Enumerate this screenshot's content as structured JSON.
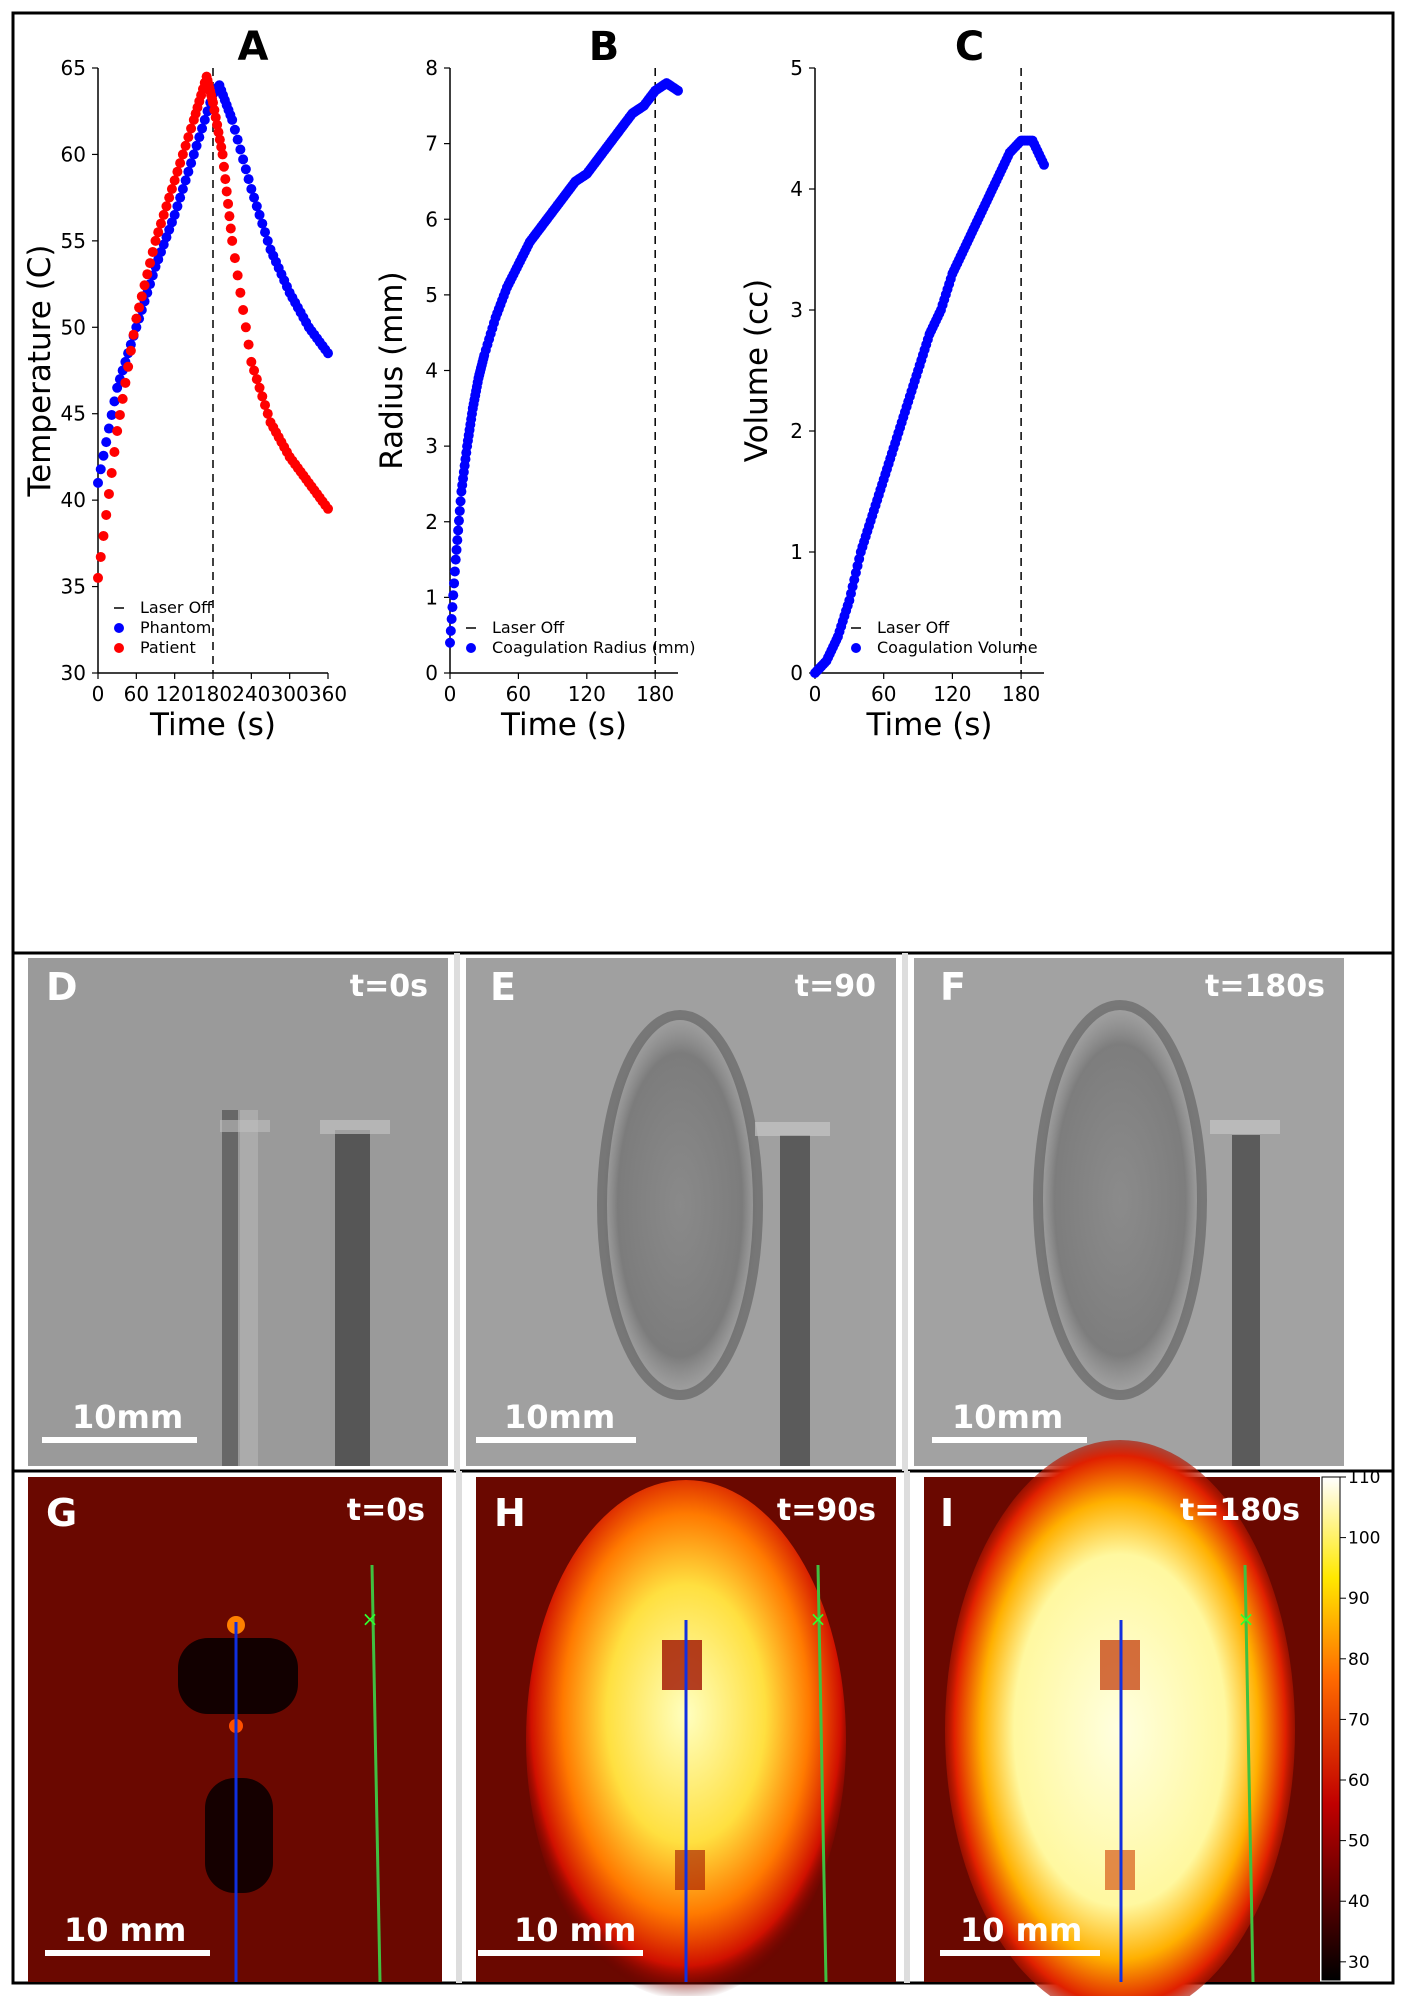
{
  "chart_data": [
    {
      "id": "A",
      "type": "scatter",
      "panel_label": "A",
      "xlabel": "Time (s)",
      "ylabel": "Temperature (C)",
      "xlim": [
        0,
        360
      ],
      "ylim": [
        30,
        65
      ],
      "xticks": [
        0,
        60,
        120,
        180,
        240,
        300,
        360
      ],
      "yticks": [
        30,
        35,
        40,
        45,
        50,
        55,
        60,
        65
      ],
      "vline_x": 180,
      "legend": [
        "Laser Off",
        "Phantom",
        "Patient"
      ],
      "series": [
        {
          "name": "Phantom",
          "color": "#0000ff",
          "x": [
            0,
            30,
            60,
            90,
            120,
            150,
            180,
            190,
            210,
            240,
            270,
            300,
            330,
            360
          ],
          "y": [
            41,
            46.5,
            50,
            53.5,
            56.5,
            60,
            63.5,
            64,
            62,
            58,
            54.5,
            52,
            50,
            48.5
          ]
        },
        {
          "name": "Patient",
          "color": "#ff0000",
          "x": [
            0,
            30,
            60,
            90,
            120,
            150,
            170,
            180,
            195,
            210,
            240,
            270,
            300,
            330,
            360
          ],
          "y": [
            35.5,
            44,
            50.5,
            55,
            58.5,
            62,
            64.5,
            63,
            60,
            55,
            48,
            44.5,
            42.5,
            41,
            39.5
          ]
        }
      ]
    },
    {
      "id": "B",
      "type": "scatter",
      "panel_label": "B",
      "xlabel": "Time (s)",
      "ylabel": "Radius (mm)",
      "xlim": [
        0,
        200
      ],
      "ylim": [
        0,
        8
      ],
      "xticks": [
        0,
        60,
        120,
        180
      ],
      "yticks": [
        0,
        1,
        2,
        3,
        4,
        5,
        6,
        7,
        8
      ],
      "vline_x": 180,
      "legend": [
        "Laser Off",
        "Coagulation Radius (mm)"
      ],
      "series": [
        {
          "name": "Coagulation Radius (mm)",
          "color": "#0000ff",
          "x": [
            0,
            5,
            10,
            15,
            20,
            25,
            30,
            40,
            50,
            60,
            70,
            80,
            90,
            100,
            110,
            120,
            130,
            140,
            150,
            160,
            170,
            180,
            190,
            200
          ],
          "y": [
            0.4,
            1.5,
            2.4,
            3.0,
            3.5,
            3.9,
            4.2,
            4.7,
            5.1,
            5.4,
            5.7,
            5.9,
            6.1,
            6.3,
            6.5,
            6.6,
            6.8,
            7.0,
            7.2,
            7.4,
            7.5,
            7.7,
            7.8,
            7.7
          ]
        }
      ]
    },
    {
      "id": "C",
      "type": "scatter",
      "panel_label": "C",
      "xlabel": "Time (s)",
      "ylabel": "Volume (cc)",
      "xlim": [
        0,
        200
      ],
      "ylim": [
        0,
        5
      ],
      "xticks": [
        0,
        60,
        120,
        180
      ],
      "yticks": [
        0,
        1,
        2,
        3,
        4,
        5
      ],
      "vline_x": 180,
      "legend": [
        "Laser Off",
        "Coagulation Volume"
      ],
      "series": [
        {
          "name": "Coagulation Volume",
          "color": "#0000ff",
          "x": [
            0,
            10,
            20,
            30,
            40,
            50,
            60,
            70,
            80,
            90,
            100,
            110,
            120,
            130,
            140,
            150,
            160,
            170,
            180,
            190,
            200
          ],
          "y": [
            0,
            0.1,
            0.3,
            0.6,
            1.0,
            1.3,
            1.6,
            1.9,
            2.2,
            2.5,
            2.8,
            3.0,
            3.3,
            3.5,
            3.7,
            3.9,
            4.1,
            4.3,
            4.4,
            4.4,
            4.2
          ]
        }
      ]
    }
  ],
  "mri_panels": [
    {
      "label": "D",
      "time": "t=0s",
      "scale": "10mm"
    },
    {
      "label": "E",
      "time": "t=90",
      "scale": "10mm"
    },
    {
      "label": "F",
      "time": "t=180s",
      "scale": "10mm"
    }
  ],
  "thermal_panels": [
    {
      "label": "G",
      "time": "t=0s",
      "scale": "10 mm"
    },
    {
      "label": "H",
      "time": "t=90s",
      "scale": "10 mm"
    },
    {
      "label": "I",
      "time": "t=180s",
      "scale": "10 mm"
    }
  ],
  "colorbar": {
    "ticks": [
      "110",
      "100",
      "90",
      "80",
      "70",
      "60",
      "50",
      "40",
      "30"
    ],
    "tick_values": [
      110,
      100,
      90,
      80,
      70,
      60,
      50,
      40,
      30
    ],
    "range": [
      27,
      110
    ]
  }
}
